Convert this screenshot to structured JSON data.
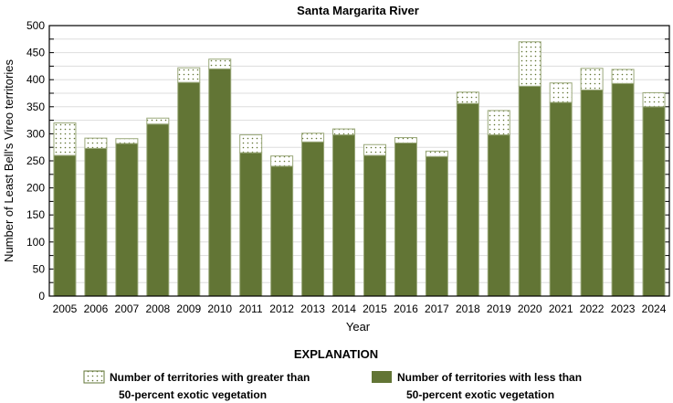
{
  "chart_data": {
    "type": "bar",
    "stacked": true,
    "title": "Santa Margarita River",
    "xlabel": "Year",
    "ylabel": "Number of Least Bell's Vireo territories",
    "ylim": [
      0,
      500
    ],
    "yticks": [
      0,
      25,
      50,
      75,
      100,
      125,
      150,
      175,
      200,
      225,
      250,
      275,
      300,
      325,
      350,
      375,
      400,
      425,
      450,
      475,
      500
    ],
    "grid": true,
    "categories": [
      "2005",
      "2006",
      "2007",
      "2008",
      "2009",
      "2010",
      "2011",
      "2012",
      "2013",
      "2014",
      "2015",
      "2016",
      "2017",
      "2018",
      "2019",
      "2020",
      "2021",
      "2022",
      "2023",
      "2024"
    ],
    "series": [
      {
        "name": "Number of territories with less than 50-percent exotic vegetation",
        "color": "#627535",
        "values": [
          260,
          273,
          282,
          318,
          395,
          420,
          265,
          240,
          285,
          298,
          260,
          283,
          258,
          356,
          298,
          388,
          358,
          381,
          393,
          350
        ]
      },
      {
        "name": "Number of territories with greater than 50-percent exotic vegetation",
        "color": "#ffffff",
        "pattern": "dots",
        "values": [
          60,
          19,
          9,
          11,
          27,
          18,
          33,
          19,
          16,
          11,
          20,
          10,
          10,
          21,
          45,
          82,
          36,
          40,
          26,
          26
        ]
      }
    ],
    "legend": {
      "title": "EXPLANATION",
      "placement": "bottom",
      "items": [
        {
          "line1": "Number of territories with greater than",
          "line2": "50-percent exotic vegetation"
        },
        {
          "line1": "Number of territories with less than",
          "line2": "50-percent exotic vegetation"
        }
      ]
    }
  }
}
